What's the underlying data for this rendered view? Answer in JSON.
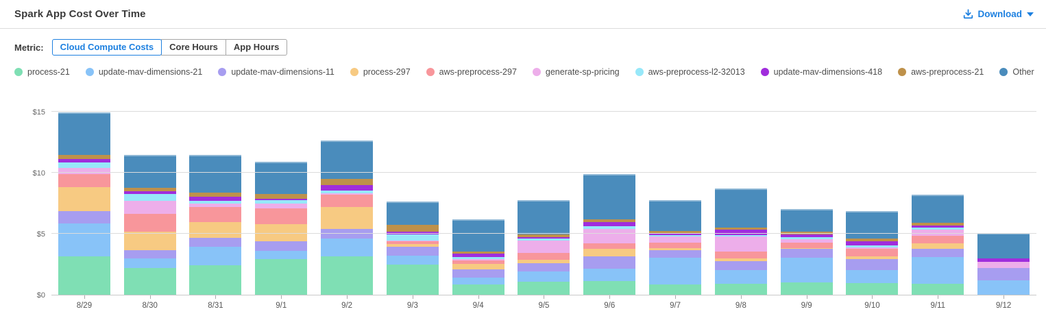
{
  "header": {
    "title": "Spark App Cost Over Time",
    "download_label": "Download"
  },
  "metric": {
    "label": "Metric:",
    "options": [
      {
        "label": "Cloud Compute Costs",
        "selected": true
      },
      {
        "label": "Core Hours",
        "selected": false
      },
      {
        "label": "App Hours",
        "selected": false
      }
    ]
  },
  "colors": {
    "accent_blue": "#1d80e0",
    "axis_text": "#666666",
    "grid_line": "#dcdcdc",
    "axis_line": "#c8c8c8"
  },
  "chart_data": {
    "type": "bar",
    "variant": "stacked",
    "title": "Spark App Cost Over Time",
    "xlabel": "",
    "ylabel": "Cloud Compute Costs ($)",
    "ylim": [
      0,
      15
    ],
    "yticks": [
      0,
      5,
      10,
      15
    ],
    "ytick_labels": [
      "$0",
      "$5",
      "$10",
      "$15"
    ],
    "grid": "horizontal",
    "legend_position": "top",
    "categories": [
      "8/29",
      "8/30",
      "8/31",
      "9/1",
      "9/2",
      "9/3",
      "9/4",
      "9/5",
      "9/6",
      "9/7",
      "9/8",
      "9/9",
      "9/10",
      "9/11",
      "9/12"
    ],
    "series": [
      {
        "name": "process-21",
        "color": "#7fdfb4",
        "values": [
          3.13,
          2.17,
          2.42,
          2.92,
          3.16,
          2.47,
          0.84,
          1.09,
          1.1,
          0.84,
          0.9,
          1.03,
          0.97,
          0.9,
          0
        ]
      },
      {
        "name": "update-mav-dimensions-21",
        "color": "#88c3f8",
        "values": [
          2.7,
          0.8,
          1.54,
          0.69,
          1.48,
          0.73,
          0.56,
          0.84,
          1.05,
          2.21,
          1.15,
          2.02,
          1.05,
          2.19,
          1.16
        ]
      },
      {
        "name": "update-mav-dimensions-11",
        "color": "#a79df0",
        "values": [
          1.0,
          0.67,
          0.73,
          0.79,
          0.77,
          0.75,
          0.66,
          0.67,
          1.01,
          0.6,
          0.72,
          0.69,
          0.88,
          0.66,
          1.03
        ]
      },
      {
        "name": "process-297",
        "color": "#f7ca82",
        "values": [
          2.0,
          1.56,
          1.25,
          1.39,
          1.8,
          0.2,
          0.47,
          0.26,
          0.58,
          0.15,
          0.22,
          0.1,
          0.22,
          0.47,
          0
        ]
      },
      {
        "name": "aws-preprocess-297",
        "color": "#f8969b",
        "values": [
          1.07,
          1.46,
          1.25,
          1.27,
          1.03,
          0.2,
          0.28,
          0.56,
          0.47,
          0.45,
          0.55,
          0.45,
          0.62,
          0.6,
          0
        ]
      },
      {
        "name": "generate-sp-pricing",
        "color": "#edaeea",
        "values": [
          0.52,
          1.07,
          0.25,
          0.43,
          0.08,
          0.08,
          0.1,
          1.01,
          1.16,
          0.52,
          1.22,
          0.24,
          0.13,
          0.52,
          0.52
        ]
      },
      {
        "name": "aws-preprocess-l2-32013",
        "color": "#97e8f9",
        "values": [
          0.43,
          0.56,
          0.25,
          0.28,
          0.26,
          0.52,
          0.15,
          0.15,
          0.24,
          0.09,
          0.13,
          0.19,
          0.19,
          0.19,
          0
        ]
      },
      {
        "name": "update-mav-dimensions-418",
        "color": "#a02ddc",
        "values": [
          0.26,
          0.19,
          0.35,
          0.11,
          0.43,
          0.2,
          0.3,
          0.11,
          0.34,
          0.19,
          0.45,
          0.22,
          0.34,
          0.15,
          0.26
        ]
      },
      {
        "name": "aws-preprocess-21",
        "color": "#be914a",
        "values": [
          0.37,
          0.3,
          0.3,
          0.37,
          0.5,
          0.58,
          0.15,
          0.26,
          0.21,
          0.19,
          0.15,
          0.22,
          0.19,
          0.19,
          0
        ]
      },
      {
        "name": "Other",
        "color": "#4a8cbc",
        "values": [
          3.46,
          2.7,
          3.09,
          2.62,
          3.16,
          1.9,
          2.64,
          2.79,
          3.75,
          2.49,
          3.24,
          1.89,
          2.27,
          2.32,
          2.12
        ]
      }
    ]
  }
}
